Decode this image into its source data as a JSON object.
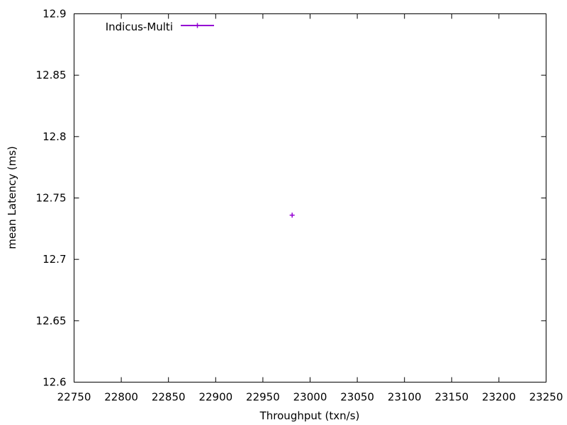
{
  "chart_data": {
    "type": "scatter",
    "xlabel": "Throughput (txn/s)",
    "ylabel": "mean Latency (ms)",
    "xlim": [
      22750,
      23250
    ],
    "ylim": [
      12.6,
      12.9
    ],
    "x_ticks": [
      22750,
      22800,
      22850,
      22900,
      22950,
      23000,
      23050,
      23100,
      23150,
      23200,
      23250
    ],
    "y_ticks": [
      12.6,
      12.65,
      12.7,
      12.75,
      12.8,
      12.85,
      12.9
    ],
    "x_tick_labels": [
      "22750",
      "22800",
      "22850",
      "22900",
      "22950",
      "23000",
      "23050",
      "23100",
      "23150",
      "23200",
      "23250"
    ],
    "y_tick_labels": [
      "12.6",
      "12.65",
      "12.7",
      "12.75",
      "12.8",
      "12.85",
      "12.9"
    ],
    "grid": false,
    "legend_position": "top-left",
    "series": [
      {
        "name": "Indicus-Multi",
        "color": "#9400d3",
        "marker": "plus",
        "points": [
          {
            "x": 22981,
            "y": 12.736
          }
        ]
      }
    ]
  }
}
